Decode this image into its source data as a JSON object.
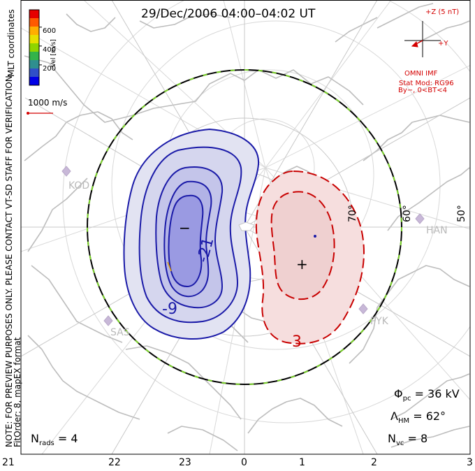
{
  "title": "29/Dec/2006 04:00–04:02 UT",
  "colorbar": {
    "label": "Vel [m/s]",
    "ticks": [
      "600",
      "400",
      "200"
    ],
    "colors": [
      "#e60000",
      "#ff5a00",
      "#ffae00",
      "#e7e000",
      "#8fd400",
      "#33b34a",
      "#2f8f8f",
      "#3050c8",
      "#0000e6"
    ]
  },
  "side_texts": {
    "mlt": "MLT coordinates",
    "note": "NOTE: FOR PREVIEW PURPOSES ONLY. PLEASE CONTACT VT-SD STAFF FOR VERIFICATION.",
    "fit": "FitOrder: 8, mapEX format"
  },
  "vector_scale": "1000 m/s",
  "imf": {
    "z_label": "+Z (5 nT)",
    "y_label": "+Y",
    "omni": "OMNI IMF",
    "model": "Stat Mod: RG96",
    "cond": "By−, 0<BT<4"
  },
  "lat_labels": [
    "70°",
    "60°",
    "50°"
  ],
  "radars": [
    "KOD",
    "SAS",
    "PYK",
    "HAN"
  ],
  "contours": {
    "neg_labels": [
      "-21",
      "-9"
    ],
    "pos_label": "3",
    "min_marker": "−",
    "max_marker": "+"
  },
  "stats": {
    "phi_sym": "Φ",
    "phi_sub": "pc",
    "phi_val": "= 36 kV",
    "lam_sym": "Λ",
    "lam_sub": "HM",
    "lam_val": "= 62°",
    "nvc_sym": "N",
    "nvc_sub": "vc",
    "nvc_val": "= 8",
    "nrads_sym": "N",
    "nrads_sub": "rads",
    "nrads_val": "= 4"
  },
  "mlt_axis": [
    "21",
    "22",
    "23",
    "0",
    "1",
    "2",
    "3"
  ]
}
